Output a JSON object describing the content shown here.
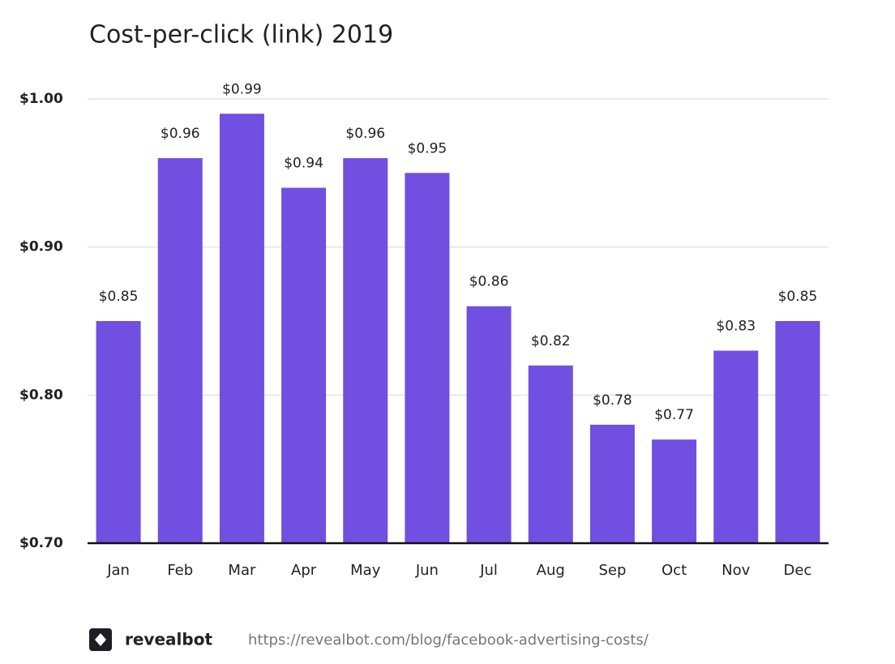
{
  "chart_data": {
    "type": "bar",
    "title": "Cost-per-click (link) 2019",
    "categories": [
      "Jan",
      "Feb",
      "Mar",
      "Apr",
      "May",
      "Jun",
      "Jul",
      "Aug",
      "Sep",
      "Oct",
      "Nov",
      "Dec"
    ],
    "values": [
      0.85,
      0.96,
      0.99,
      0.94,
      0.96,
      0.95,
      0.86,
      0.82,
      0.78,
      0.77,
      0.83,
      0.85
    ],
    "value_labels": [
      "$0.85",
      "$0.96",
      "$0.99",
      "$0.94",
      "$0.96",
      "$0.95",
      "$0.86",
      "$0.82",
      "$0.78",
      "$0.77",
      "$0.83",
      "$0.85"
    ],
    "color": "#714fe0",
    "ylim": [
      0.7,
      1.0
    ],
    "yticks": [
      {
        "value": 0.7,
        "label": "$0.70"
      },
      {
        "value": 0.8,
        "label": "$0.80"
      },
      {
        "value": 0.9,
        "label": "$0.90"
      },
      {
        "value": 1.0,
        "label": "$1.00"
      }
    ],
    "grid": true
  },
  "footer": {
    "brand": "revealbot",
    "url": "https://revealbot.com/blog/facebook-advertising-costs/"
  }
}
